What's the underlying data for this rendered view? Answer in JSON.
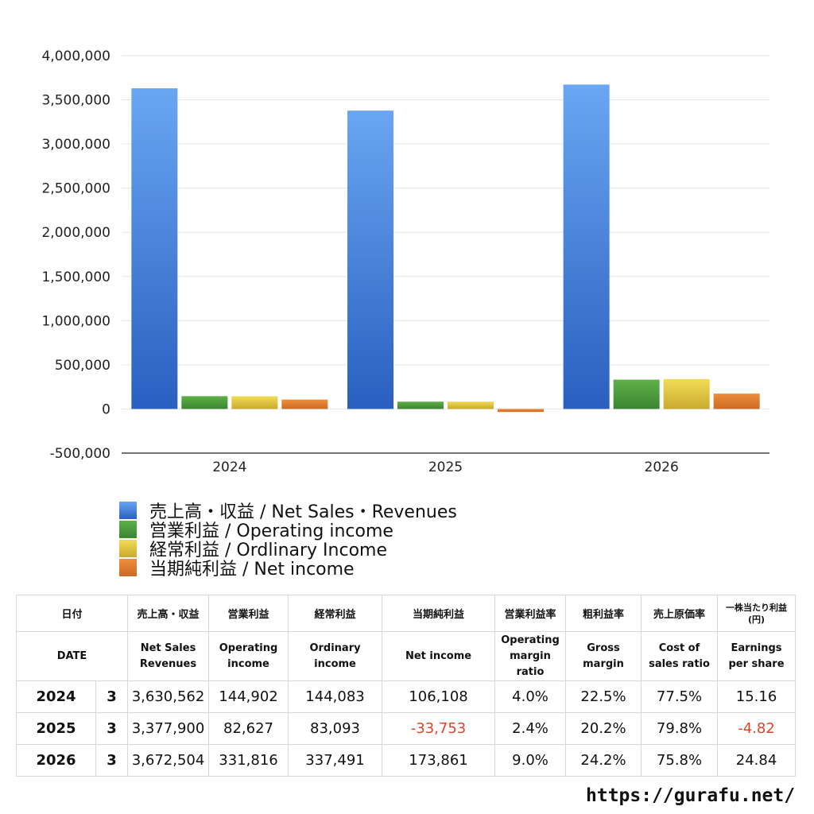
{
  "chart_data": {
    "type": "bar",
    "categories": [
      "2024",
      "2025",
      "2026"
    ],
    "series": [
      {
        "name": "売上高・収益 / Net Sales・Revenues",
        "values": [
          3630562,
          3377900,
          3672504
        ],
        "color": "#3a78d6"
      },
      {
        "name": "営業利益 / Operating income",
        "values": [
          144902,
          82627,
          331816
        ],
        "color": "#4c9b3c"
      },
      {
        "name": "経常利益 / Ordlinary Income",
        "values": [
          144083,
          83093,
          337491
        ],
        "color": "#d9c23c"
      },
      {
        "name": "当期純利益 / Net income",
        "values": [
          106108,
          -33753,
          173861
        ],
        "color": "#dd7a2e"
      }
    ],
    "ylim": [
      -500000,
      4000000
    ],
    "yticks": [
      "4,000,000",
      "3,500,000",
      "3,000,000",
      "2,500,000",
      "2,000,000",
      "1,500,000",
      "1,000,000",
      "500,000",
      "0",
      "-500,000"
    ],
    "ytick_values": [
      4000000,
      3500000,
      3000000,
      2500000,
      2000000,
      1500000,
      1000000,
      500000,
      0,
      -500000
    ],
    "grid": true,
    "legend_position": "bottom-left"
  },
  "table": {
    "headers_jp": [
      "日付",
      "売上高・収益",
      "営業利益",
      "経常利益",
      "当期純利益",
      "営業利益率",
      "粗利益率",
      "売上原価率",
      "一株当たり利益\n(円)"
    ],
    "headers_en": [
      "DATE",
      "Net Sales\nRevenues",
      "Operating\nincome",
      "Ordinary\nincome",
      "Net income",
      "Operating\nmargin\nratio",
      "Gross\nmargin",
      "Cost of\nsales ratio",
      "Earnings\nper share"
    ],
    "rows": [
      {
        "year": "2024",
        "month": "3",
        "sales": "3,630,562",
        "op": "144,902",
        "ord": "144,083",
        "net": "106,108",
        "opm": "4.0%",
        "gm": "22.5%",
        "cos": "77.5%",
        "eps": "15.16",
        "net_neg": false,
        "eps_neg": false
      },
      {
        "year": "2025",
        "month": "3",
        "sales": "3,377,900",
        "op": "82,627",
        "ord": "83,093",
        "net": "-33,753",
        "opm": "2.4%",
        "gm": "20.2%",
        "cos": "79.8%",
        "eps": "-4.82",
        "net_neg": true,
        "eps_neg": true
      },
      {
        "year": "2026",
        "month": "3",
        "sales": "3,672,504",
        "op": "331,816",
        "ord": "337,491",
        "net": "173,861",
        "opm": "9.0%",
        "gm": "24.2%",
        "cos": "75.8%",
        "eps": "24.84",
        "net_neg": false,
        "eps_neg": false
      }
    ]
  },
  "footer": {
    "site": "https://gurafu.net/"
  },
  "colors": {
    "negative": "#d9452b"
  }
}
